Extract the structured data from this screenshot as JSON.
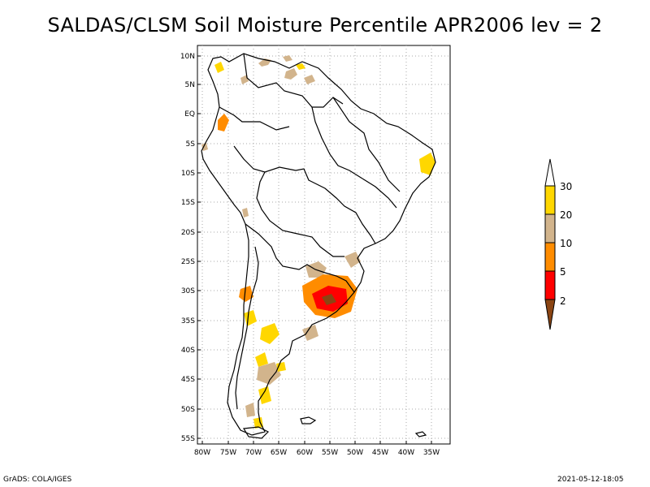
{
  "title": "SALDAS/CLSM Soil Moisture Percentile APR2006 lev = 2",
  "map": {
    "lat_labels": [
      "10N",
      "5N",
      "EQ",
      "5S",
      "10S",
      "15S",
      "20S",
      "25S",
      "30S",
      "35S",
      "40S",
      "45S",
      "50S",
      "55S"
    ],
    "lon_labels": [
      "80W",
      "75W",
      "70W",
      "65W",
      "60W",
      "55W",
      "50W",
      "45W",
      "40W",
      "35W"
    ],
    "lat_range": [
      -56,
      11
    ],
    "lon_range": [
      -81,
      -33
    ],
    "grid": true,
    "region": "South America",
    "anomaly_colors": {
      "below_2": "#8b4513",
      "2_to_5": "#ff0000",
      "5_to_10": "#ff8c00",
      "10_to_20": "#d2b48c",
      "20_to_30": "#ffd700"
    }
  },
  "colorbar": {
    "labels": [
      "30",
      "20",
      "10",
      "5",
      "2"
    ],
    "colors": [
      "#ffffff",
      "#ffd700",
      "#d2b48c",
      "#ff8c00",
      "#ff0000",
      "#8b4513"
    ]
  },
  "footer": {
    "left": "GrADS: COLA/IGES",
    "right": "2021-05-12-18:05"
  }
}
